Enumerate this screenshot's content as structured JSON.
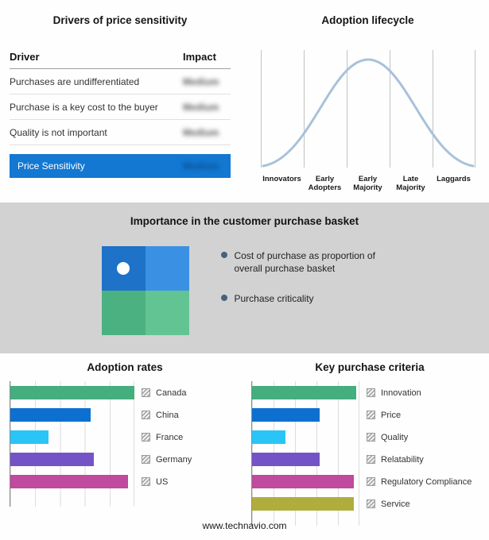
{
  "page": {
    "footer": "www.technavio.com"
  },
  "drivers_table": {
    "title": "Drivers of price sensitivity",
    "columns": [
      "Driver",
      "Impact"
    ],
    "rows": [
      {
        "driver": "Purchases are undifferentiated",
        "impact": "Medium"
      },
      {
        "driver": "Purchase is a key cost to the buyer",
        "impact": "Medium"
      },
      {
        "driver": "Quality is not important",
        "impact": "Medium"
      }
    ],
    "summary_row": {
      "driver": "Price Sensitivity",
      "impact": "Medium"
    },
    "highlight_color": "#1278d2",
    "impact_values_blurred": true
  },
  "adoption_lifecycle": {
    "title": "Adoption lifecycle",
    "stages": [
      "Innovators",
      "Early Adopters",
      "Early Majority",
      "Late Majority",
      "Laggards"
    ],
    "curve_color": "#a9c1da"
  },
  "purchase_basket": {
    "title": "Importance in the customer purchase basket",
    "bullets": [
      "Cost of purchase as proportion of overall purchase basket",
      "Purchase criticality"
    ],
    "quadrant_colors": [
      "#1e72c8",
      "#3a91e4",
      "#4cb181",
      "#62c493"
    ],
    "band_color": "#d2d2d2",
    "bullet_color": "#46627e"
  },
  "chart_data": [
    {
      "type": "bar",
      "orientation": "horizontal",
      "title": "Adoption rates",
      "categories": [
        "Canada",
        "China",
        "France",
        "Germany",
        "US"
      ],
      "values": [
        100,
        65,
        31,
        67,
        95
      ],
      "colors": [
        "#44ae7e",
        "#0d70d0",
        "#29c5f6",
        "#7453c7",
        "#bf4a9e"
      ],
      "xlim": [
        0,
        100
      ],
      "grid": "vertical",
      "legend_position": "right",
      "note": "no numeric axis labels shown; values estimated relative to plot width"
    },
    {
      "type": "bar",
      "orientation": "horizontal",
      "title": "Key purchase criteria",
      "categories": [
        "Innovation",
        "Price",
        "Quality",
        "Relatability",
        "Regulatory Compliance",
        "Service"
      ],
      "values": [
        97,
        63,
        31,
        63,
        95,
        95
      ],
      "colors": [
        "#44ae7e",
        "#0d70d0",
        "#29c5f6",
        "#7453c7",
        "#bf4a9e",
        "#b1ad3d"
      ],
      "xlim": [
        0,
        100
      ],
      "grid": "vertical",
      "legend_position": "right",
      "note": "no numeric axis labels shown; values estimated relative to plot width"
    }
  ]
}
